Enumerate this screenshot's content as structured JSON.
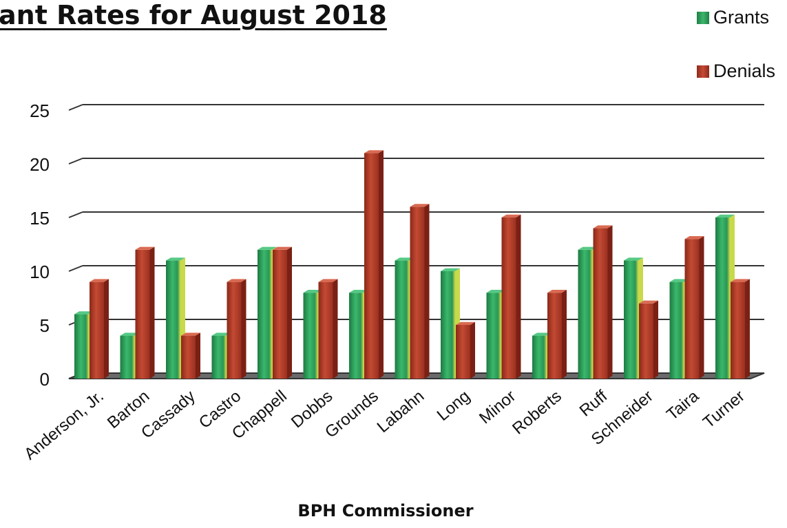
{
  "chart_data": {
    "type": "bar",
    "title": "ant Rates for August 2018",
    "xlabel": "BPH Commissioner",
    "ylabel": "",
    "ylim": [
      0,
      25
    ],
    "yticks": [
      0,
      5,
      10,
      15,
      20,
      25
    ],
    "grid": true,
    "legend_position": "top-right",
    "categories": [
      "Anderson, Jr.",
      "Barton",
      "Cassady",
      "Castro",
      "Chappell",
      "Dobbs",
      "Grounds",
      "Labahn",
      "Long",
      "Minor",
      "Roberts",
      "Ruff",
      "Schneider",
      "Taira",
      "Turner"
    ],
    "series": [
      {
        "name": "Grants",
        "color": "#2e9e5e",
        "values": [
          6,
          4,
          11,
          4,
          12,
          8,
          8,
          11,
          10,
          8,
          4,
          12,
          11,
          9,
          15
        ]
      },
      {
        "name": "Denials",
        "color": "#b23a2a",
        "values": [
          9,
          12,
          4,
          9,
          12,
          9,
          21,
          16,
          5,
          15,
          8,
          14,
          7,
          13,
          9
        ]
      }
    ]
  }
}
